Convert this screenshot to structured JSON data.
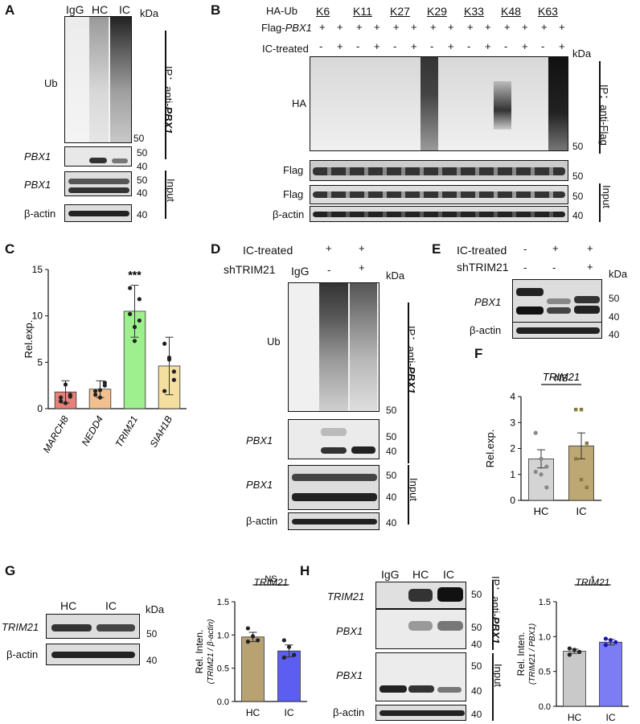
{
  "panels": {
    "A": {
      "label": "A",
      "lanes": [
        "IgG",
        "HC",
        "IC"
      ],
      "kda": "kDa",
      "blots": [
        "Ub",
        "PBX1",
        "PBX1",
        "β-actin"
      ],
      "markers": [
        "50",
        "50",
        "40",
        "50",
        "40",
        "40"
      ],
      "ip": "IP：anti-",
      "ip_target": "PBX1",
      "input": "Input"
    },
    "B": {
      "label": "B",
      "ha_ub": "HA-Ub",
      "flag_pbx1_prefix": "Flag-",
      "flag_pbx1_gene": "PBX1",
      "ic_treated": "IC-treated",
      "ub_types": [
        "K6",
        "K11",
        "K27",
        "K29",
        "K33",
        "K48",
        "K63"
      ],
      "plus": "+",
      "minus": "-",
      "kda": "kDa",
      "blots": [
        "HA",
        "Flag",
        "Flag",
        "β-actin"
      ],
      "markers": [
        "50",
        "50",
        "50",
        "40"
      ],
      "ip": "IP：anti-Flag",
      "input": "Input"
    },
    "C": {
      "label": "C",
      "asterisks": "***"
    },
    "D": {
      "label": "D",
      "ic_treated": "IC-treated",
      "shtrim21": "shTRIM21",
      "igg": "IgG",
      "kda": "kDa",
      "blots": [
        "Ub",
        "PBX1",
        "PBX1",
        "β-actin"
      ],
      "markers": [
        "50",
        "50",
        "40",
        "50",
        "40",
        "40"
      ],
      "ip": "IP：anti-",
      "ip_target": "PBX1",
      "input": "Input"
    },
    "E": {
      "label": "E",
      "ic_treated": "IC-treated",
      "shtrim21": "shTRIM21",
      "kda": "kDa",
      "blots": [
        "PBX1",
        "β-actin"
      ],
      "markers": [
        "50",
        "40",
        "40"
      ]
    },
    "F": {
      "label": "F",
      "sig": "NS"
    },
    "G": {
      "label": "G",
      "lanes": [
        "HC",
        "IC"
      ],
      "kda": "kDa",
      "blots": [
        "TRIM21",
        "β-actin"
      ],
      "markers": [
        "50",
        "40"
      ],
      "sig": "NS"
    },
    "H": {
      "label": "H",
      "lanes": [
        "IgG",
        "HC",
        "IC"
      ],
      "blots": [
        "TRIM21",
        "PBX1",
        "PBX1",
        "β-actin"
      ],
      "markers": [
        "50",
        "50",
        "40",
        "50",
        "40",
        "40"
      ],
      "ip": "IP：anti-",
      "ip_target": "PBX1",
      "input": "Input",
      "sig": "*"
    }
  },
  "chart_data": [
    {
      "panel": "C",
      "type": "bar",
      "categories": [
        "MARCH8",
        "NEDD4",
        "TRIM21",
        "SIAH1B"
      ],
      "values": [
        1.8,
        2.1,
        10.5,
        4.6
      ],
      "errors": [
        1.2,
        0.9,
        2.8,
        3.1
      ],
      "points": [
        [
          1.2,
          0.6,
          1.5,
          0.8,
          2.6,
          1.3
        ],
        [
          1.9,
          1.2,
          2.5,
          1.5,
          2.0,
          2.8
        ],
        [
          13.0,
          7.3,
          11.8,
          10.2,
          8.8,
          9.5
        ],
        [
          7.0,
          5.5,
          3.1,
          1.9,
          5.3,
          4.0
        ]
      ],
      "colors": [
        "#e8807a",
        "#f2c08e",
        "#9ef08e",
        "#f4dfa0"
      ],
      "title": "",
      "ylabel": "Rel.exp.",
      "ylim": [
        0,
        15
      ],
      "yticks": [
        0,
        5,
        10,
        15
      ],
      "annotation": "***"
    },
    {
      "panel": "F",
      "type": "bar",
      "title": "TRIM21",
      "categories": [
        "HC",
        "IC"
      ],
      "values": [
        1.6,
        2.1
      ],
      "errors": [
        0.35,
        0.5
      ],
      "points": [
        [
          2.6,
          1.6,
          1.3,
          1.1,
          1.0,
          0.5
        ],
        [
          3.5,
          3.5,
          2.2,
          1.6,
          0.8,
          0.5
        ]
      ],
      "colors": [
        "#d4d4d4",
        "#bda873"
      ],
      "ylabel": "Rel.exp.",
      "ylim": [
        0,
        4
      ],
      "yticks": [
        0,
        1,
        2,
        3,
        4
      ],
      "annotation": "NS"
    },
    {
      "panel": "G",
      "type": "bar",
      "title": "TRIM21",
      "categories": [
        "HC",
        "IC"
      ],
      "values": [
        0.97,
        0.76
      ],
      "errors": [
        0.07,
        0.09
      ],
      "points": [
        [
          1.1,
          0.98,
          0.92,
          0.9
        ],
        [
          0.92,
          0.82,
          0.7,
          0.66
        ]
      ],
      "colors": [
        "#b8a272",
        "#5b5ef0"
      ],
      "ylabel": "Rel. Inten.",
      "ylabel2": "(TRIM21 / β-actin)",
      "ylim": [
        0,
        1.5
      ],
      "yticks": [
        "0.0",
        "0.5",
        "1.0",
        "1.5"
      ],
      "annotation": "NS"
    },
    {
      "panel": "H",
      "type": "bar",
      "title": "TRIM21",
      "categories": [
        "HC",
        "IC"
      ],
      "values": [
        0.79,
        0.92
      ],
      "errors": [
        0.03,
        0.04
      ],
      "points": [
        [
          0.83,
          0.81,
          0.78,
          0.74
        ],
        [
          0.97,
          0.95,
          0.92,
          0.88
        ]
      ],
      "colors": [
        "#c9c9c9",
        "#7c7cf4"
      ],
      "ylabel": "Rel. Inten.",
      "ylabel2": "(TRIM21 / PBX1)",
      "ylim": [
        0,
        1.5
      ],
      "yticks": [
        "0.0",
        "0.5",
        "1.0",
        "1.5"
      ],
      "annotation": "*"
    }
  ]
}
